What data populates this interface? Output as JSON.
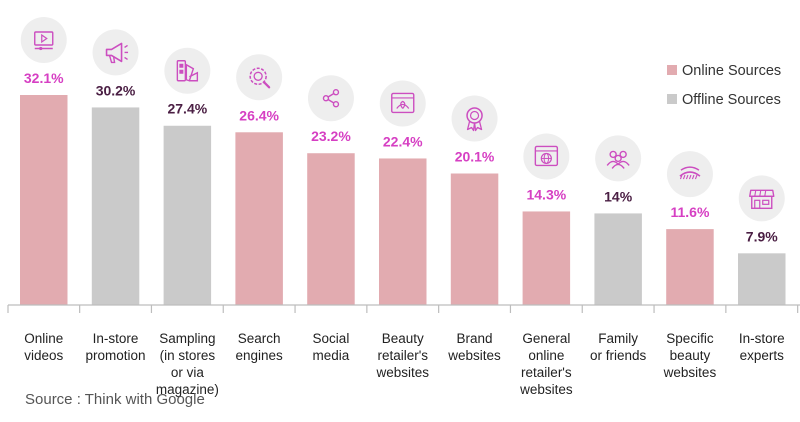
{
  "chart_data": {
    "type": "bar",
    "ylim": [
      0,
      35
    ],
    "colors": {
      "online": "#e2abb0",
      "offline": "#cacaca",
      "online_label": "#d63fc3",
      "offline_label": "#4a1e43",
      "icon": "#cc4ec0",
      "icon_circle": "#eeeeee"
    },
    "legend": {
      "placement": "right",
      "items": [
        {
          "label": "Online Sources",
          "group": "online"
        },
        {
          "label": "Offline Sources",
          "group": "offline"
        }
      ]
    },
    "categories": [
      {
        "label": [
          "Online",
          "videos"
        ],
        "value": 32.1,
        "value_label": "32.1%",
        "group": "online",
        "icon": "video-play-icon"
      },
      {
        "label": [
          "In-store",
          "promotion"
        ],
        "value": 30.2,
        "value_label": "30.2%",
        "group": "offline",
        "icon": "megaphone-icon"
      },
      {
        "label": [
          "Sampling",
          "(in stores",
          "or via",
          "magazine)"
        ],
        "value": 27.4,
        "value_label": "27.4%",
        "group": "offline",
        "icon": "samples-icon"
      },
      {
        "label": [
          "Search",
          "engines"
        ],
        "value": 26.4,
        "value_label": "26.4%",
        "group": "online",
        "icon": "search-gear-icon"
      },
      {
        "label": [
          "Social",
          "media"
        ],
        "value": 23.2,
        "value_label": "23.2%",
        "group": "online",
        "icon": "share-icon"
      },
      {
        "label": [
          "Beauty",
          "retailer's",
          "websites"
        ],
        "value": 22.4,
        "value_label": "22.4%",
        "group": "online",
        "icon": "browser-lotus-icon"
      },
      {
        "label": [
          "Brand",
          "websites"
        ],
        "value": 20.1,
        "value_label": "20.1%",
        "group": "online",
        "icon": "award-ribbon-icon"
      },
      {
        "label": [
          "General",
          "online",
          "retailer's",
          "websites"
        ],
        "value": 14.3,
        "value_label": "14.3%",
        "group": "online",
        "icon": "browser-globe-icon"
      },
      {
        "label": [
          "Family",
          "or friends"
        ],
        "value": 14,
        "value_label": "14%",
        "group": "offline",
        "icon": "people-icon"
      },
      {
        "label": [
          "Specific",
          "beauty",
          "websites"
        ],
        "value": 11.6,
        "value_label": "11.6%",
        "group": "online",
        "icon": "eyelash-icon"
      },
      {
        "label": [
          "In-store",
          "experts"
        ],
        "value": 7.9,
        "value_label": "7.9%",
        "group": "offline",
        "icon": "storefront-icon"
      }
    ]
  },
  "source": "Source : Think with Google"
}
